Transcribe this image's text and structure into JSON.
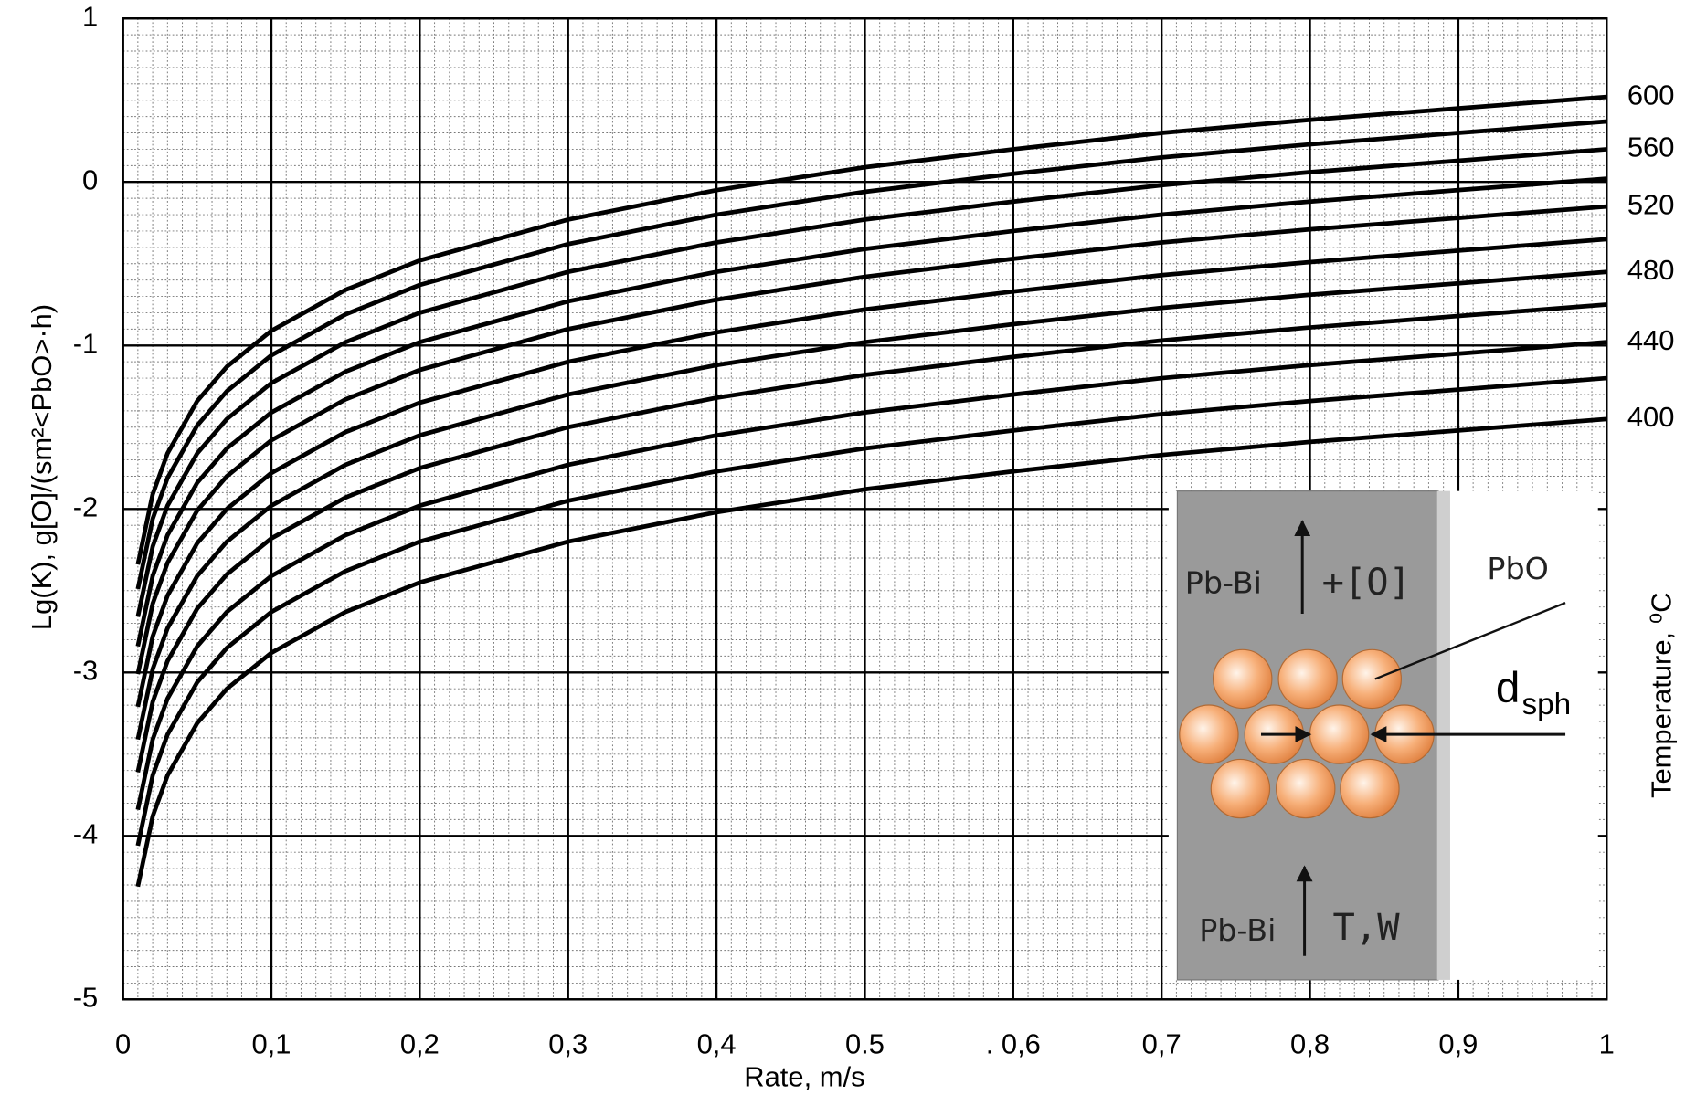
{
  "chart_data": {
    "type": "line",
    "x_label": "Rate, m/s",
    "y_label": "Lg(K), g[O]/(sm²<PbO>·h)",
    "y2_label": "Temperature, ⁰C",
    "x": [
      0.01,
      0.02,
      0.03,
      0.05,
      0.07,
      0.1,
      0.15,
      0.2,
      0.3,
      0.4,
      0.5,
      0.6,
      0.7,
      0.8,
      0.9,
      1
    ],
    "series": [
      {
        "name": "600",
        "color": "#000000",
        "values": [
          -2.34,
          -1.91,
          -1.66,
          -1.34,
          -1.13,
          -0.91,
          -0.66,
          -0.48,
          -0.23,
          -0.05,
          0.09,
          0.2,
          0.3,
          0.38,
          0.45,
          0.52
        ]
      },
      {
        "color": "#000000",
        "values": [
          -2.49,
          -2.06,
          -1.81,
          -1.49,
          -1.28,
          -1.06,
          -0.81,
          -0.63,
          -0.38,
          -0.2,
          -0.06,
          0.05,
          0.15,
          0.23,
          0.3,
          0.37
        ]
      },
      {
        "name": "560",
        "color": "#000000",
        "values": [
          -2.66,
          -2.23,
          -1.98,
          -1.66,
          -1.45,
          -1.23,
          -0.98,
          -0.8,
          -0.55,
          -0.37,
          -0.23,
          -0.12,
          -0.02,
          0.06,
          0.13,
          0.2
        ]
      },
      {
        "color": "#000000",
        "values": [
          -2.84,
          -2.41,
          -2.16,
          -1.84,
          -1.63,
          -1.41,
          -1.16,
          -0.98,
          -0.73,
          -0.55,
          -0.41,
          -0.3,
          -0.2,
          -0.12,
          -0.05,
          0.02
        ]
      },
      {
        "name": "520",
        "color": "#000000",
        "values": [
          -3.01,
          -2.58,
          -2.33,
          -2.01,
          -1.8,
          -1.58,
          -1.33,
          -1.15,
          -0.9,
          -0.72,
          -0.58,
          -0.47,
          -0.37,
          -0.29,
          -0.22,
          -0.15
        ]
      },
      {
        "color": "#000000",
        "values": [
          -3.21,
          -2.78,
          -2.53,
          -2.21,
          -2.0,
          -1.78,
          -1.53,
          -1.35,
          -1.1,
          -0.92,
          -0.78,
          -0.67,
          -0.57,
          -0.49,
          -0.42,
          -0.35
        ]
      },
      {
        "name": "480",
        "color": "#000000",
        "values": [
          -3.41,
          -2.98,
          -2.73,
          -2.41,
          -2.2,
          -1.98,
          -1.73,
          -1.55,
          -1.3,
          -1.12,
          -0.98,
          -0.87,
          -0.77,
          -0.69,
          -0.62,
          -0.55
        ]
      },
      {
        "color": "#000000",
        "values": [
          -3.61,
          -3.18,
          -2.93,
          -2.61,
          -2.4,
          -2.18,
          -1.93,
          -1.75,
          -1.5,
          -1.32,
          -1.18,
          -1.07,
          -0.97,
          -0.89,
          -0.82,
          -0.75
        ]
      },
      {
        "name": "440",
        "color": "#000000",
        "values": [
          -3.84,
          -3.41,
          -3.16,
          -2.84,
          -2.63,
          -2.41,
          -2.16,
          -1.98,
          -1.73,
          -1.55,
          -1.41,
          -1.3,
          -1.2,
          -1.12,
          -1.05,
          -0.98
        ]
      },
      {
        "color": "#000000",
        "values": [
          -4.06,
          -3.63,
          -3.38,
          -3.06,
          -2.85,
          -2.63,
          -2.38,
          -2.2,
          -1.95,
          -1.77,
          -1.63,
          -1.52,
          -1.42,
          -1.34,
          -1.27,
          -1.2
        ]
      },
      {
        "name": "400",
        "color": "#000000",
        "values": [
          -4.31,
          -3.88,
          -3.63,
          -3.31,
          -3.1,
          -2.88,
          -2.63,
          -2.45,
          -2.2,
          -2.02,
          -1.88,
          -1.77,
          -1.67,
          -1.59,
          -1.52,
          -1.45
        ]
      }
    ],
    "xlim": [
      0,
      1
    ],
    "xticks": [
      0,
      {
        "value": 0.1,
        "label": "0,1"
      },
      {
        "value": 0.2,
        "label": "0,2"
      },
      {
        "value": 0.3,
        "label": "0,3"
      },
      {
        "value": 0.4,
        "label": "0,4"
      },
      {
        "value": 0.5,
        "label": "0.5"
      },
      {
        "value": 0.6,
        "label": ". 0,6"
      },
      {
        "value": 0.7,
        "label": "0,7"
      },
      {
        "value": 0.8,
        "label": "0,8"
      },
      {
        "value": 0.9,
        "label": "0,9"
      },
      1
    ],
    "ylim": [
      -5,
      1
    ],
    "yticks": [
      -5,
      -4,
      -3,
      -2,
      -1,
      0,
      1
    ],
    "grid": true,
    "inset": {
      "flow_top": "Pb-Bi",
      "oxygen": "+[O]",
      "particle": "PbO",
      "diameter": "d",
      "diameter_sub": "sph",
      "flow_bottom": "Pb-Bi",
      "params": "T,W"
    }
  }
}
